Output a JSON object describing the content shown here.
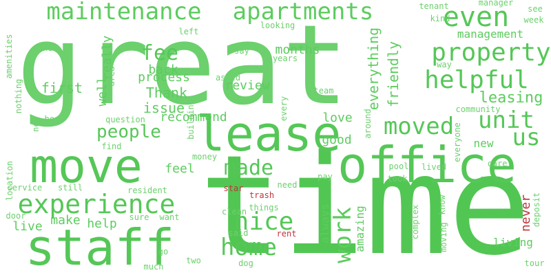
{
  "colors": {
    "background": "#ffffff",
    "green_dark": "#4cc44f",
    "green_mid": "#5ccc5e",
    "green_light": "#76d477",
    "red": "#c0343c"
  },
  "words": [
    {
      "text": "great",
      "color": "#6cd06d",
      "orient": "h"
    },
    {
      "text": "time",
      "color": "#52c653",
      "orient": "h"
    },
    {
      "text": "lease",
      "color": "#55c757",
      "orient": "h"
    },
    {
      "text": "move",
      "color": "#55c757",
      "orient": "h"
    },
    {
      "text": "office",
      "color": "#55c757",
      "orient": "h"
    },
    {
      "text": "staff",
      "color": "#55c757",
      "orient": "h"
    },
    {
      "text": "maintenance",
      "color": "#5ccc5e",
      "orient": "h"
    },
    {
      "text": "apartments",
      "color": "#5ccc5e",
      "orient": "h"
    },
    {
      "text": "experience",
      "color": "#55c757",
      "orient": "h"
    },
    {
      "text": "property",
      "color": "#55c757",
      "orient": "h"
    },
    {
      "text": "helpful",
      "color": "#55c757",
      "orient": "h"
    },
    {
      "text": "even",
      "color": "#55c757",
      "orient": "h"
    },
    {
      "text": "moved",
      "color": "#55c757",
      "orient": "h"
    },
    {
      "text": "unit",
      "color": "#55c757",
      "orient": "h"
    },
    {
      "text": "us",
      "color": "#55c757",
      "orient": "h"
    },
    {
      "text": "nice",
      "color": "#55c757",
      "orient": "h"
    },
    {
      "text": "home",
      "color": "#55c757",
      "orient": "h"
    },
    {
      "text": "made",
      "color": "#55c757",
      "orient": "h"
    },
    {
      "text": "people",
      "color": "#55c757",
      "orient": "h"
    },
    {
      "text": "fee",
      "color": "#55c757",
      "orient": "h"
    },
    {
      "text": "work",
      "color": "#5ccc5e",
      "orient": "v"
    },
    {
      "text": "management",
      "color": "#5ccc5e",
      "orient": "h"
    },
    {
      "text": "leasing",
      "color": "#5ccc5e",
      "orient": "h"
    },
    {
      "text": "back",
      "color": "#5ccc5e",
      "orient": "h"
    },
    {
      "text": "process",
      "color": "#5ccc5e",
      "orient": "h"
    },
    {
      "text": "Thank",
      "color": "#5ccc5e",
      "orient": "h"
    },
    {
      "text": "issue",
      "color": "#5ccc5e",
      "orient": "h"
    },
    {
      "text": "recommend",
      "color": "#5ccc5e",
      "orient": "h"
    },
    {
      "text": "review",
      "color": "#5ccc5e",
      "orient": "h"
    },
    {
      "text": "months",
      "color": "#5ccc5e",
      "orient": "h"
    },
    {
      "text": "first",
      "color": "#5ccc5e",
      "orient": "h"
    },
    {
      "text": "well",
      "color": "#5ccc5e",
      "orient": "v"
    },
    {
      "text": "really",
      "color": "#5ccc5e",
      "orient": "v"
    },
    {
      "text": "everything",
      "color": "#5ccc5e",
      "orient": "v"
    },
    {
      "text": "friendly",
      "color": "#5ccc5e",
      "orient": "v"
    },
    {
      "text": "love",
      "color": "#5ccc5e",
      "orient": "h"
    },
    {
      "text": "good",
      "color": "#5ccc5e",
      "orient": "h"
    },
    {
      "text": "new",
      "color": "#5ccc5e",
      "orient": "h"
    },
    {
      "text": "feel",
      "color": "#5ccc5e",
      "orient": "h"
    },
    {
      "text": "make",
      "color": "#5ccc5e",
      "orient": "h"
    },
    {
      "text": "help",
      "color": "#5ccc5e",
      "orient": "h"
    },
    {
      "text": "live",
      "color": "#5ccc5e",
      "orient": "h"
    },
    {
      "text": "always",
      "color": "#5ccc5e",
      "orient": "v"
    },
    {
      "text": "amazing",
      "color": "#5ccc5e",
      "orient": "v"
    },
    {
      "text": "never",
      "color": "#c0343c",
      "orient": "v"
    },
    {
      "text": "living",
      "color": "#5ccc5e",
      "orient": "h"
    },
    {
      "text": "manager",
      "color": "#6cd06d",
      "orient": "h"
    },
    {
      "text": "tenant",
      "color": "#6cd06d",
      "orient": "h"
    },
    {
      "text": "kind",
      "color": "#6cd06d",
      "orient": "h"
    },
    {
      "text": "see",
      "color": "#6cd06d",
      "orient": "h"
    },
    {
      "text": "week",
      "color": "#6cd06d",
      "orient": "h"
    },
    {
      "text": "left",
      "color": "#6cd06d",
      "orient": "h"
    },
    {
      "text": "looking",
      "color": "#6cd06d",
      "orient": "h"
    },
    {
      "text": "nan",
      "color": "#6cd06d",
      "orient": "h"
    },
    {
      "text": "say",
      "color": "#6cd06d",
      "orient": "h"
    },
    {
      "text": "years",
      "color": "#6cd06d",
      "orient": "h"
    },
    {
      "text": "asked",
      "color": "#6cd06d",
      "orient": "h"
    },
    {
      "text": "team",
      "color": "#6cd06d",
      "orient": "h"
    },
    {
      "text": "way",
      "color": "#6cd06d",
      "orient": "h"
    },
    {
      "text": "community",
      "color": "#6cd06d",
      "orient": "h"
    },
    {
      "text": "amenities",
      "color": "#6cd06d",
      "orient": "v"
    },
    {
      "text": "nothing",
      "color": "#6cd06d",
      "orient": "v"
    },
    {
      "text": "area",
      "color": "#6cd06d",
      "orient": "v"
    },
    {
      "text": "best",
      "color": "#6cd06d",
      "orient": "h"
    },
    {
      "text": "now",
      "color": "#6cd06d",
      "orient": "v"
    },
    {
      "text": "question",
      "color": "#6cd06d",
      "orient": "h"
    },
    {
      "text": "find",
      "color": "#6cd06d",
      "orient": "h"
    },
    {
      "text": "location",
      "color": "#6cd06d",
      "orient": "v"
    },
    {
      "text": "building",
      "color": "#6cd06d",
      "orient": "v"
    },
    {
      "text": "every",
      "color": "#6cd06d",
      "orient": "v"
    },
    {
      "text": "around",
      "color": "#6cd06d",
      "orient": "v"
    },
    {
      "text": "everyone",
      "color": "#6cd06d",
      "orient": "v"
    },
    {
      "text": "money",
      "color": "#6cd06d",
      "orient": "h"
    },
    {
      "text": "pool",
      "color": "#6cd06d",
      "orient": "h"
    },
    {
      "text": "lived",
      "color": "#6cd06d",
      "orient": "h"
    },
    {
      "text": "care",
      "color": "#6cd06d",
      "orient": "h"
    },
    {
      "text": "service",
      "color": "#6cd06d",
      "orient": "h"
    },
    {
      "text": "still",
      "color": "#6cd06d",
      "orient": "h"
    },
    {
      "text": "resident",
      "color": "#6cd06d",
      "orient": "h"
    },
    {
      "text": "star",
      "color": "#c0343c",
      "orient": "h"
    },
    {
      "text": "need",
      "color": "#6cd06d",
      "orient": "h"
    },
    {
      "text": "pay",
      "color": "#6cd06d",
      "orient": "h"
    },
    {
      "text": "took",
      "color": "#6cd06d",
      "orient": "h"
    },
    {
      "text": "trash",
      "color": "#c0343c",
      "orient": "h"
    },
    {
      "text": "things",
      "color": "#6cd06d",
      "orient": "h"
    },
    {
      "text": "know",
      "color": "#6cd06d",
      "orient": "v"
    },
    {
      "text": "deposit",
      "color": "#6cd06d",
      "orient": "v"
    },
    {
      "text": "door",
      "color": "#6cd06d",
      "orient": "h"
    },
    {
      "text": "sure",
      "color": "#6cd06d",
      "orient": "h"
    },
    {
      "text": "want",
      "color": "#6cd06d",
      "orient": "h"
    },
    {
      "text": "clean",
      "color": "#6cd06d",
      "orient": "h"
    },
    {
      "text": "said",
      "color": "#6cd06d",
      "orient": "h"
    },
    {
      "text": "rent",
      "color": "#c0343c",
      "orient": "h"
    },
    {
      "text": "complex",
      "color": "#6cd06d",
      "orient": "v"
    },
    {
      "text": "moving",
      "color": "#6cd06d",
      "orient": "v"
    },
    {
      "text": "go",
      "color": "#6cd06d",
      "orient": "h"
    },
    {
      "text": "two",
      "color": "#6cd06d",
      "orient": "h"
    },
    {
      "text": "dog",
      "color": "#6cd06d",
      "orient": "h"
    },
    {
      "text": "much",
      "color": "#6cd06d",
      "orient": "h"
    },
    {
      "text": "tour",
      "color": "#6cd06d",
      "orient": "h"
    }
  ]
}
